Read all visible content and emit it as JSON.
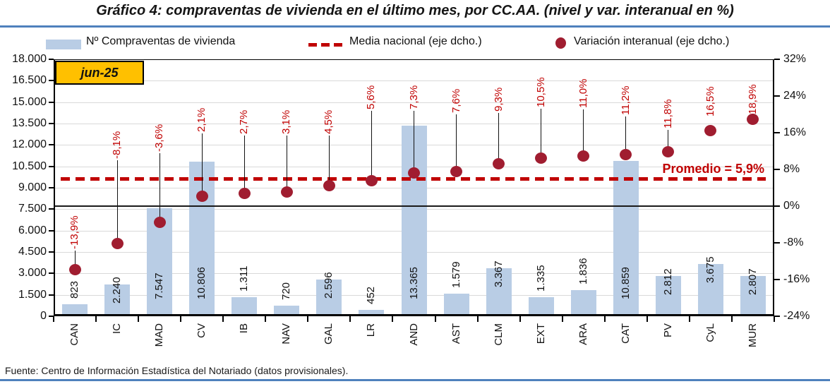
{
  "header": {
    "source_note": "Fuente: Centro de Información Estadística del Notariado (datos provisionales).",
    "period_badge": "jun-25"
  },
  "legend": {
    "bar_label": "Nº Compraventas de vivienda",
    "line_label": "Media nacional (eje dcho.)",
    "dot_label": "Variación interanual (eje dcho.)"
  },
  "colors": {
    "bar_fill": "#B9CDE5",
    "dot_fill": "#A01D30",
    "dashed_line_red": "#C00000",
    "label_red": "#C00000",
    "rule_blue": "#4F81BD",
    "badge_bg": "#FFC000",
    "gridline": "#D9D9D9"
  },
  "chart_data": {
    "type": "combo",
    "title": "Gráfico 4: compraventas de vivienda en el último mes, por CC.AA. (nivel y var. interanual en %)",
    "categories": [
      "CAN",
      "IC",
      "MAD",
      "CV",
      "IB",
      "NAV",
      "GAL",
      "LR",
      "AND",
      "AST",
      "CLM",
      "EXT",
      "ARA",
      "CAT",
      "PV",
      "CyL",
      "MUR"
    ],
    "series": [
      {
        "name": "Nº Compraventas de vivienda",
        "type": "bar",
        "axis": "left",
        "values": [
          823,
          2240,
          7547,
          10806,
          1311,
          720,
          2596,
          452,
          13365,
          1579,
          3367,
          1335,
          1836,
          10859,
          2812,
          3675,
          2807
        ],
        "labels": [
          "823",
          "2.240",
          "7.547",
          "10.806",
          "1.311",
          "720",
          "2.596",
          "452",
          "13.365",
          "1.579",
          "3.367",
          "1.335",
          "1.836",
          "10.859",
          "2.812",
          "3.675",
          "2.807"
        ]
      },
      {
        "name": "Variación interanual (eje dcho.)",
        "type": "scatter",
        "axis": "right",
        "values": [
          -13.9,
          -8.1,
          -3.6,
          2.1,
          2.7,
          3.1,
          4.5,
          5.6,
          7.3,
          7.6,
          9.3,
          10.5,
          11.0,
          11.2,
          11.8,
          16.5,
          18.9
        ],
        "labels": [
          "-13,9%",
          "-8,1%",
          "-3,6%",
          "2,1%",
          "2,7%",
          "3,1%",
          "4,5%",
          "5,6%",
          "7,3%",
          "7,6%",
          "9,3%",
          "10,5%",
          "11,0%",
          "11,2%",
          "11,8%",
          "16,5%",
          "18,9%"
        ]
      },
      {
        "name": "Media nacional (eje dcho.)",
        "type": "dashed_line",
        "axis": "right",
        "value": 5.9,
        "annotation": "Promedio = 5,9%"
      }
    ],
    "left_axis": {
      "min": 0,
      "max": 18000,
      "step": 1500,
      "tick_labels": [
        "18.000",
        "16.500",
        "15.000",
        "13.500",
        "12.000",
        "10.500",
        "9.000",
        "7.500",
        "6.000",
        "4.500",
        "3.000",
        "1.500",
        "0"
      ]
    },
    "right_axis": {
      "min": -24,
      "max": 32,
      "step": 8,
      "tick_labels": [
        "32%",
        "24%",
        "16%",
        "8%",
        "0%",
        "-8%",
        "-16%",
        "-24%"
      ]
    },
    "grid": true,
    "legend_position": "top"
  }
}
